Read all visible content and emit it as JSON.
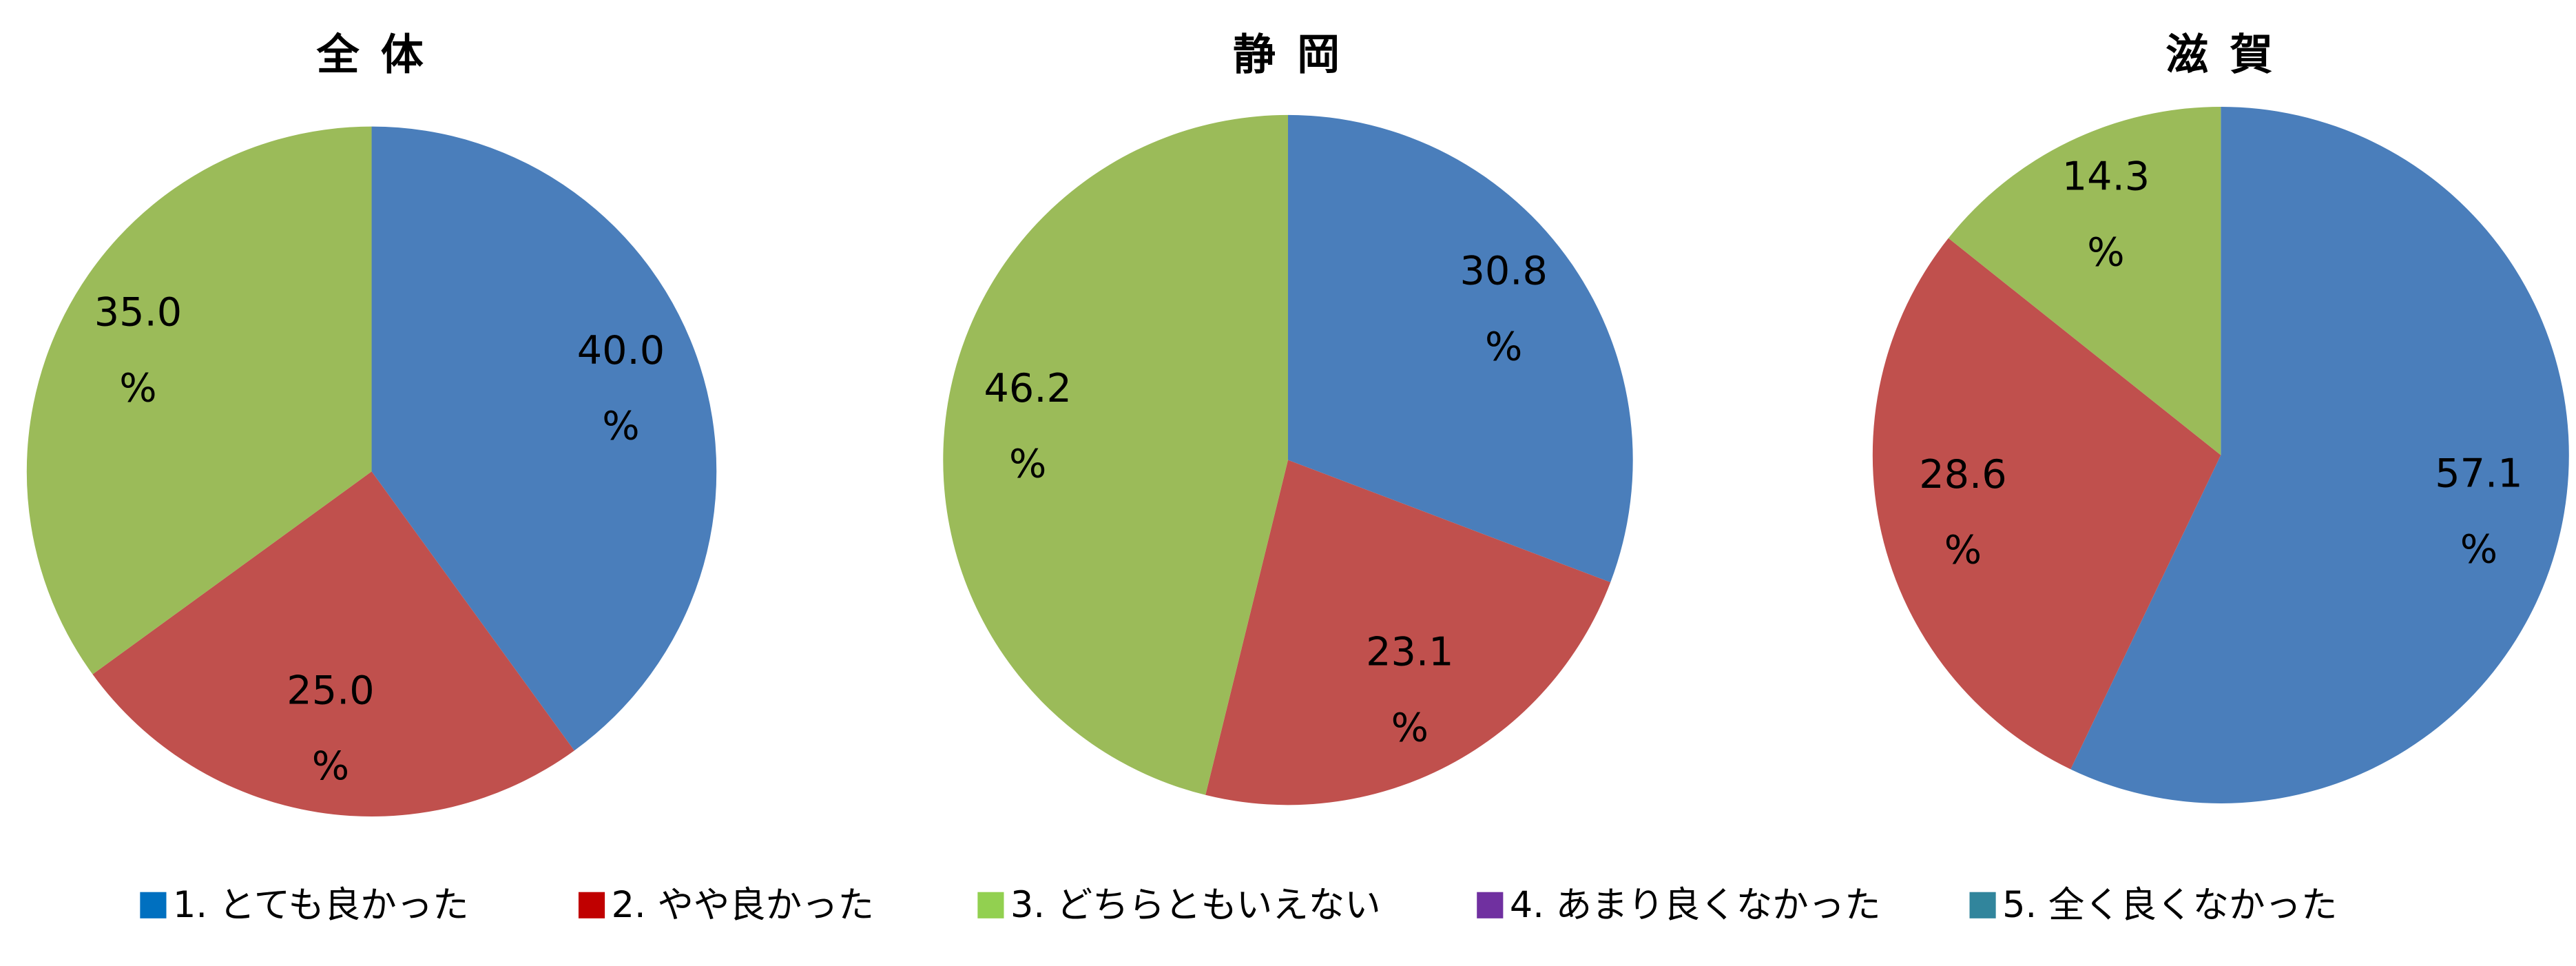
{
  "chart_data": [
    {
      "type": "pie",
      "title": "全 体",
      "values": [
        40.0,
        25.0,
        35.0,
        0,
        0
      ],
      "value_labels": [
        "40.0%",
        "25.0%",
        "35.0%",
        null,
        null
      ]
    },
    {
      "type": "pie",
      "title": "静 岡",
      "values": [
        30.8,
        23.1,
        46.2,
        0,
        0
      ],
      "value_labels": [
        "30.8%",
        "23.1%",
        "46.2%",
        null,
        null
      ]
    },
    {
      "type": "pie",
      "title": "滋 賀",
      "values": [
        57.1,
        28.6,
        14.3,
        0,
        0
      ],
      "value_labels": [
        "57.1%",
        "28.6%",
        "14.3%",
        null,
        null
      ]
    }
  ],
  "legend": {
    "labels": [
      "1.  とても良かった",
      "2.  やや良かった",
      "3.  どちらともいえない",
      "4.  あまり良くなかった",
      "5.   全く良くなかった"
    ],
    "colors": [
      "#0070c0",
      "#c00000",
      "#92d050",
      "#7030a0",
      "#31859c"
    ],
    "slice_colors": [
      "#4a7ebb",
      "#c0504d",
      "#9bbb59",
      "#8064a2",
      "#4bacc6"
    ]
  }
}
